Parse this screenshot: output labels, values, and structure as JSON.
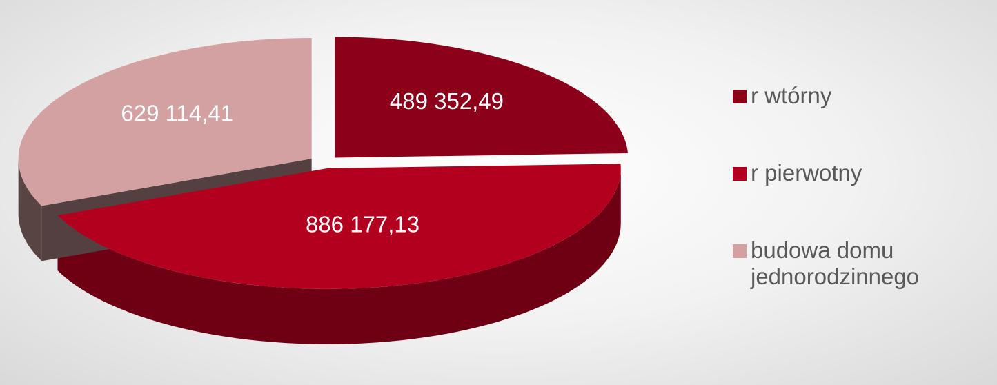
{
  "chart_data": {
    "type": "pie",
    "categories": [
      "r wtórny",
      "r pierwotny",
      "budowa domu jednorodzinnego"
    ],
    "values": [
      489352.49,
      886177.13,
      629114.41
    ],
    "value_labels": [
      "489 352,49",
      "886 177,13",
      "629 114,41"
    ],
    "colors": [
      "#8c0019",
      "#b3001e",
      "#d4a1a2"
    ],
    "legend": "right"
  }
}
